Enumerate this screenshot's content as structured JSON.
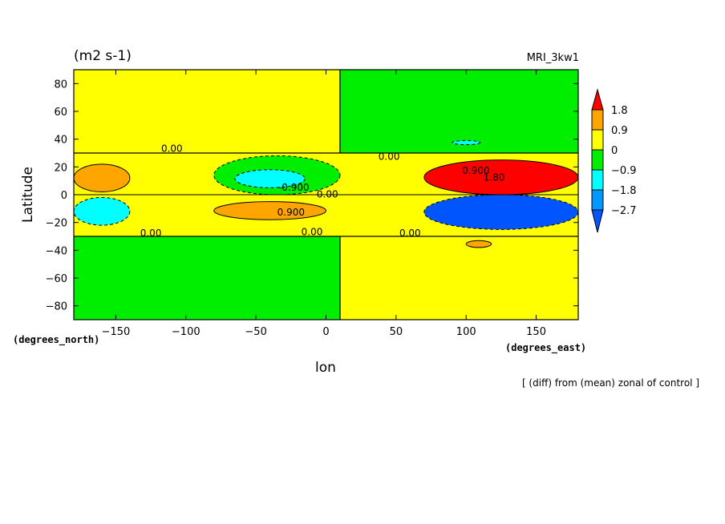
{
  "chart_data": {
    "type": "heatmap",
    "title_left": "(m2 s-1)",
    "title_right": "MRI_3kw1",
    "xlabel": "lon",
    "ylabel": "Latitude",
    "x_units": "(degrees_east)",
    "y_units": "(degrees_north)",
    "footnote": "[ (diff) from (mean) zonal of control ]",
    "xlim": [
      -180,
      180
    ],
    "ylim": [
      -90,
      90
    ],
    "x_ticks": [
      -150,
      -100,
      -50,
      0,
      50,
      100,
      150
    ],
    "y_ticks": [
      -80,
      -60,
      -40,
      -20,
      0,
      20,
      40,
      60,
      80
    ],
    "colorbar": {
      "labels": [
        "1.8",
        "0.9",
        "0",
        "-0.9",
        "-1.8",
        "-2.7"
      ],
      "colors": [
        "#ff0000",
        "#ffa500",
        "#ffff00",
        "#00ee00",
        "#00ffff",
        "#0099ff",
        "#0055ff"
      ]
    },
    "background_regions": [
      {
        "x": [
          -180,
          10
        ],
        "y": [
          -90,
          -30
        ],
        "level": "-0.9..0",
        "color": "#00ee00"
      },
      {
        "x": [
          10,
          180
        ],
        "y": [
          -90,
          -30
        ],
        "level": "0..0.9",
        "color": "#ffff00"
      },
      {
        "x": [
          -180,
          10
        ],
        "y": [
          30,
          90
        ],
        "level": "0..0.9",
        "color": "#ffff00"
      },
      {
        "x": [
          10,
          180
        ],
        "y": [
          30,
          90
        ],
        "level": "-0.9..0",
        "color": "#00ee00"
      },
      {
        "x": [
          -180,
          180
        ],
        "y": [
          -30,
          30
        ],
        "level": "0..0.9",
        "color": "#ffff00"
      }
    ],
    "anomalies": [
      {
        "name": "west equatorial positive",
        "lon_range": [
          -180,
          -140
        ],
        "lat_range": [
          2,
          22
        ],
        "peak": 1.0,
        "color": "#ffa500"
      },
      {
        "name": "west equatorial negative",
        "lon_range": [
          -180,
          -140
        ],
        "lat_range": [
          -22,
          -2
        ],
        "peak": -1.1,
        "color": "#00ffff"
      },
      {
        "name": "north subtropical low",
        "lon_range": [
          -80,
          10
        ],
        "lat_range": [
          0,
          28
        ],
        "peak": -0.9,
        "color": "#00ee00"
      },
      {
        "name": "north subtropical core",
        "lon_range": [
          -65,
          -15
        ],
        "lat_range": [
          5,
          18
        ],
        "peak": -1.0,
        "color": "#00ffff"
      },
      {
        "name": "south tropical high",
        "lon_range": [
          -80,
          0
        ],
        "lat_range": [
          -18,
          -5
        ],
        "peak": 1.0,
        "color": "#ffa500"
      },
      {
        "name": "east equatorial positive",
        "lon_range": [
          70,
          180
        ],
        "lat_range": [
          0,
          25
        ],
        "peak": 2.0,
        "color": "#ff0000"
      },
      {
        "name": "east equatorial negative",
        "lon_range": [
          70,
          180
        ],
        "lat_range": [
          -25,
          0
        ],
        "peak": -3.0,
        "color": "#0055ff"
      },
      {
        "name": "south blob",
        "lon_range": [
          100,
          118
        ],
        "lat_range": [
          -38,
          -33
        ],
        "peak": 1.0,
        "color": "#ffa500"
      },
      {
        "name": "north blob",
        "lon_range": [
          90,
          110
        ],
        "lat_range": [
          36,
          39
        ],
        "peak": -1.0,
        "color": "#00ffff"
      }
    ],
    "contour_labels": [
      {
        "text": "0.00",
        "lon": -110,
        "lat": 33
      },
      {
        "text": "0.00",
        "lon": 45,
        "lat": 27
      },
      {
        "text": "0.900",
        "lon": 107,
        "lat": 17
      },
      {
        "text": "1.80",
        "lon": 120,
        "lat": 12
      },
      {
        "text": "-0.900",
        "lon": -23,
        "lat": 5
      },
      {
        "text": "0.00",
        "lon": 1,
        "lat": 0
      },
      {
        "text": "0.900",
        "lon": -25,
        "lat": -13
      },
      {
        "text": "0.00",
        "lon": -125,
        "lat": -28
      },
      {
        "text": "0.00",
        "lon": -10,
        "lat": -27
      },
      {
        "text": "0.00",
        "lon": 60,
        "lat": -28
      }
    ]
  }
}
